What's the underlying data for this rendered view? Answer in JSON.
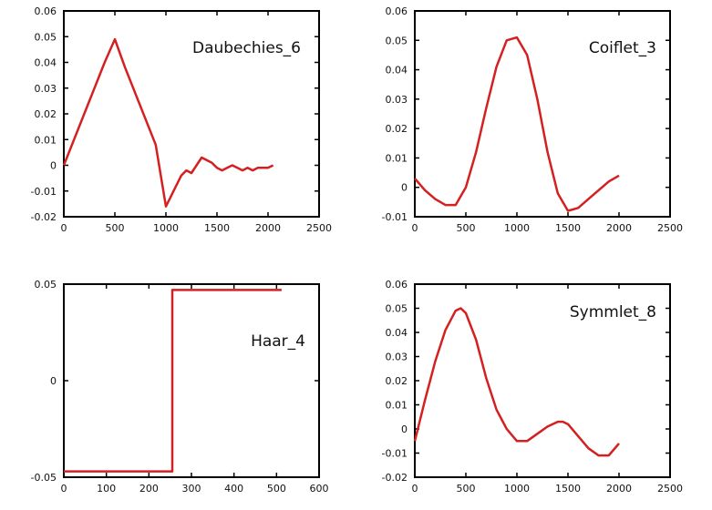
{
  "chart_data": [
    {
      "type": "line",
      "title": "Daubechies_6",
      "xlim": [
        0,
        2500
      ],
      "ylim": [
        -0.02,
        0.06
      ],
      "xticks": [
        "0",
        "500",
        "1000",
        "1500",
        "2000",
        "2500"
      ],
      "yticks": [
        "-0.02",
        "-0.01",
        "0",
        "0.01",
        "0.02",
        "0.03",
        "0.04",
        "0.05",
        "0.06"
      ],
      "grid": false,
      "color": "#d42020",
      "x": [
        0,
        100,
        200,
        300,
        400,
        500,
        600,
        700,
        800,
        900,
        950,
        1000,
        1050,
        1100,
        1150,
        1200,
        1250,
        1300,
        1350,
        1400,
        1450,
        1500,
        1550,
        1600,
        1650,
        1700,
        1750,
        1800,
        1850,
        1900,
        1950,
        2000,
        2050
      ],
      "y": [
        0.0,
        0.01,
        0.02,
        0.03,
        0.04,
        0.049,
        0.038,
        0.028,
        0.018,
        0.008,
        -0.004,
        -0.016,
        -0.012,
        -0.008,
        -0.004,
        -0.002,
        -0.003,
        0.0,
        0.003,
        0.002,
        0.001,
        -0.001,
        -0.002,
        -0.001,
        0.0,
        -0.001,
        -0.002,
        -0.001,
        -0.002,
        -0.001,
        -0.001,
        -0.001,
        0.0
      ]
    },
    {
      "type": "line",
      "title": "Coiflet_3",
      "xlim": [
        0,
        2500
      ],
      "ylim": [
        -0.01,
        0.06
      ],
      "xticks": [
        "0",
        "500",
        "1000",
        "1500",
        "2000",
        "2500"
      ],
      "yticks": [
        "-0.01",
        "0",
        "0.01",
        "0.02",
        "0.03",
        "0.04",
        "0.05",
        "0.06"
      ],
      "grid": false,
      "color": "#d42020",
      "x": [
        0,
        100,
        200,
        300,
        400,
        500,
        600,
        700,
        800,
        900,
        1000,
        1100,
        1200,
        1300,
        1400,
        1500,
        1600,
        1700,
        1800,
        1900,
        2000
      ],
      "y": [
        0.003,
        -0.001,
        -0.004,
        -0.006,
        -0.006,
        0.0,
        0.012,
        0.027,
        0.041,
        0.05,
        0.051,
        0.045,
        0.03,
        0.012,
        -0.002,
        -0.008,
        -0.007,
        -0.004,
        -0.001,
        0.002,
        0.004
      ]
    },
    {
      "type": "line",
      "title": "Haar_4",
      "xlim": [
        0,
        600
      ],
      "ylim": [
        -0.05,
        0.05
      ],
      "xticks": [
        "0",
        "100",
        "200",
        "300",
        "400",
        "500",
        "600"
      ],
      "yticks": [
        "-0.05",
        "0",
        "0.05"
      ],
      "grid": false,
      "color": "#d42020",
      "x": [
        0,
        255,
        255,
        512
      ],
      "y": [
        -0.047,
        -0.047,
        0.047,
        0.047
      ]
    },
    {
      "type": "line",
      "title": "Symmlet_8",
      "xlim": [
        0,
        2500
      ],
      "ylim": [
        -0.02,
        0.06
      ],
      "xticks": [
        "0",
        "500",
        "1000",
        "1500",
        "2000",
        "2500"
      ],
      "yticks": [
        "-0.02",
        "-0.01",
        "0",
        "0.01",
        "0.02",
        "0.03",
        "0.04",
        "0.05",
        "0.06"
      ],
      "grid": false,
      "color": "#d42020",
      "x": [
        0,
        100,
        200,
        300,
        400,
        450,
        500,
        600,
        700,
        800,
        900,
        1000,
        1100,
        1200,
        1300,
        1400,
        1450,
        1500,
        1600,
        1700,
        1800,
        1900,
        2000
      ],
      "y": [
        -0.005,
        0.012,
        0.028,
        0.041,
        0.049,
        0.05,
        0.048,
        0.037,
        0.021,
        0.008,
        0.0,
        -0.005,
        -0.005,
        -0.002,
        0.001,
        0.003,
        0.003,
        0.002,
        -0.003,
        -0.008,
        -0.011,
        -0.011,
        -0.006
      ]
    }
  ]
}
